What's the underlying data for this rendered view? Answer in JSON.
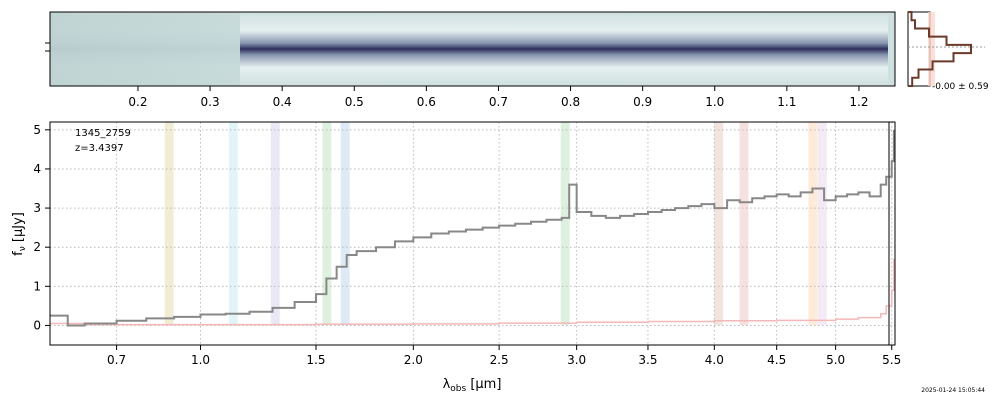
{
  "chart_data": [
    {
      "panel": "2d-spectrum",
      "type": "heatmap",
      "colormap": [
        "#ffffff",
        "#cfe0e0",
        "#9fb9c0",
        "#5a6f8f",
        "#2b2e5a"
      ],
      "top_axis": {
        "ticks": [
          "0.2",
          "0.3",
          "0.4",
          "0.5",
          "0.6",
          "0.7",
          "0.8",
          "0.9",
          "1.0",
          "1.1",
          "1.2"
        ],
        "tick_values": [
          0.2,
          0.3,
          0.4,
          0.5,
          0.6,
          0.7,
          0.8,
          0.9,
          1.0,
          1.1,
          1.2
        ]
      }
    },
    {
      "panel": "profile-histogram",
      "type": "histogram",
      "label": "-0.00 ± 0.59",
      "profile": [
        0.05,
        0.1,
        0.3,
        0.55,
        0.9,
        0.65,
        0.35,
        0.15,
        0.06
      ]
    },
    {
      "panel": "1d-spectrum",
      "type": "line",
      "annotation": [
        "1345_2759",
        "z=3.4397"
      ],
      "xlabel": "λobs [μm]",
      "ylabel": "fν [μJy]",
      "xlim": [
        0.5,
        5.53
      ],
      "ylim": [
        -0.5,
        5.2
      ],
      "xticks": [
        0.7,
        1.0,
        1.5,
        2.0,
        2.5,
        3.0,
        3.5,
        4.0,
        4.5,
        5.0,
        5.5
      ],
      "xtick_labels": [
        "0.7",
        "1.0",
        "1.5",
        "2.0",
        "2.5",
        "3.0",
        "3.5",
        "4.0",
        "4.5",
        "5.0",
        "5.5"
      ],
      "yticks": [
        0,
        1,
        2,
        3,
        4,
        5
      ],
      "ytick_labels": [
        "0",
        "1",
        "2",
        "3",
        "4",
        "5"
      ],
      "grid": true,
      "lines_highlighted": [
        {
          "x": 0.88,
          "color": "#e8e0b8"
        },
        {
          "x": 1.13,
          "color": "#d0ecf4"
        },
        {
          "x": 1.31,
          "color": "#ddd8f0"
        },
        {
          "x": 1.55,
          "color": "#c8e8c8"
        },
        {
          "x": 1.64,
          "color": "#c8dcf0"
        },
        {
          "x": 2.92,
          "color": "#c8e8c8"
        },
        {
          "x": 4.03,
          "color": "#ead4cc"
        },
        {
          "x": 4.23,
          "color": "#f0cccc"
        },
        {
          "x": 4.8,
          "color": "#fcdcc0"
        },
        {
          "x": 4.88,
          "color": "#ecdcf0"
        }
      ],
      "series": [
        {
          "color": "#888888",
          "x": [
            0.5,
            0.55,
            0.6,
            0.7,
            0.8,
            0.9,
            1.0,
            1.1,
            1.2,
            1.3,
            1.4,
            1.5,
            1.55,
            1.6,
            1.65,
            1.7,
            1.8,
            1.9,
            2.0,
            2.1,
            2.2,
            2.3,
            2.4,
            2.5,
            2.6,
            2.7,
            2.8,
            2.9,
            2.95,
            3.0,
            3.1,
            3.2,
            3.3,
            3.4,
            3.5,
            3.6,
            3.7,
            3.8,
            3.9,
            4.0,
            4.1,
            4.2,
            4.3,
            4.4,
            4.5,
            4.6,
            4.7,
            4.8,
            4.9,
            5.0,
            5.1,
            5.2,
            5.3,
            5.4,
            5.45,
            5.5,
            5.52
          ],
          "y": [
            0.25,
            0.0,
            0.05,
            0.12,
            0.18,
            0.22,
            0.28,
            0.3,
            0.35,
            0.45,
            0.6,
            0.8,
            1.2,
            1.5,
            1.8,
            1.9,
            2.0,
            2.15,
            2.25,
            2.35,
            2.4,
            2.45,
            2.5,
            2.55,
            2.6,
            2.65,
            2.7,
            2.75,
            3.6,
            2.9,
            2.8,
            2.75,
            2.8,
            2.85,
            2.9,
            2.95,
            3.0,
            3.05,
            3.1,
            3.0,
            3.2,
            3.15,
            3.25,
            3.3,
            3.35,
            3.3,
            3.4,
            3.5,
            3.2,
            3.3,
            3.35,
            3.4,
            3.3,
            3.6,
            3.8,
            4.2,
            5.0
          ]
        },
        {
          "color": "#f4b8b8",
          "x": [
            0.5,
            0.6,
            1.0,
            1.5,
            2.0,
            2.5,
            3.0,
            3.5,
            4.0,
            4.5,
            5.0,
            5.2,
            5.4,
            5.45,
            5.5,
            5.52
          ],
          "y": [
            0.05,
            0.02,
            0.02,
            0.03,
            0.04,
            0.06,
            0.08,
            0.1,
            0.12,
            0.13,
            0.16,
            0.2,
            0.3,
            0.5,
            0.9,
            1.7
          ]
        }
      ]
    }
  ],
  "footer": {
    "timestamp": "2025-01-24 15:05:44"
  }
}
